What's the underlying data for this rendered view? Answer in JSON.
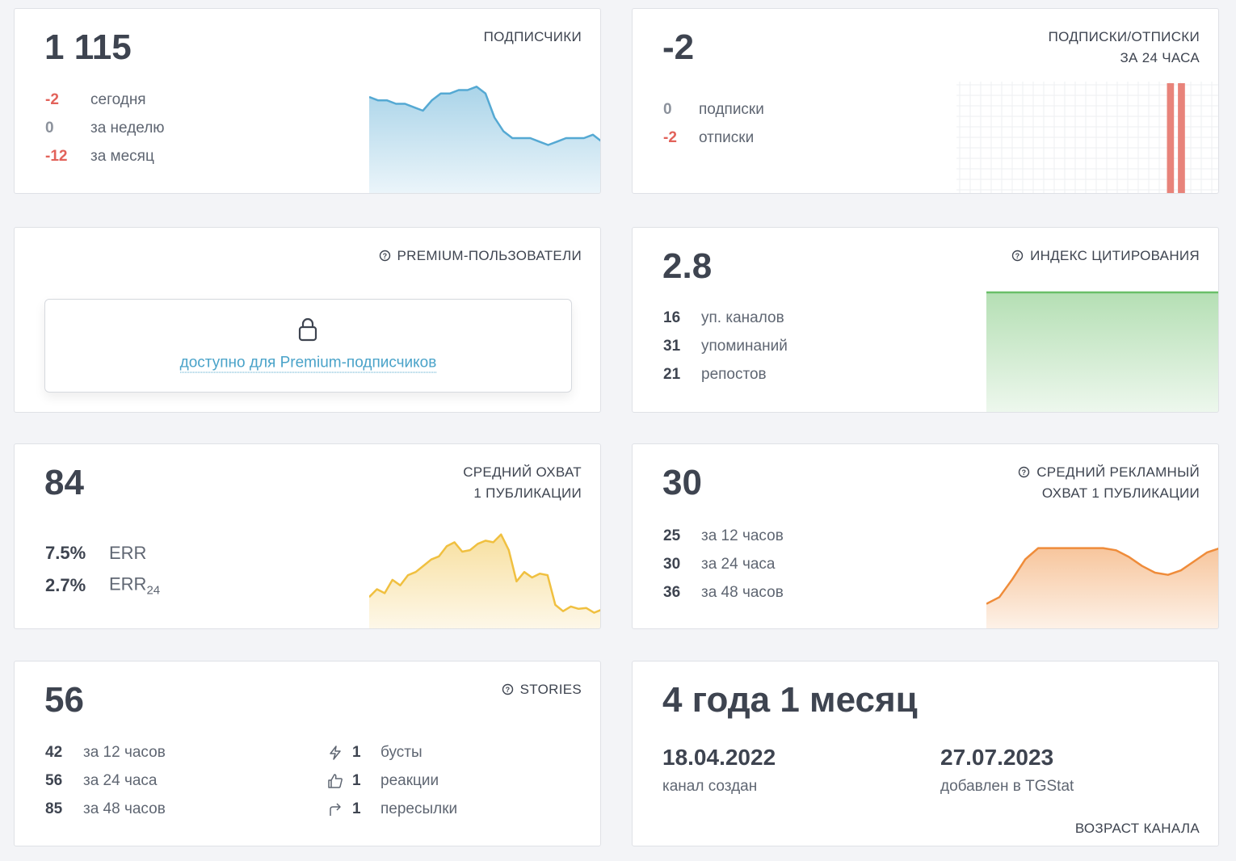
{
  "cards": [
    {
      "value": "1 115",
      "label": [
        "ПОДПИСЧИКИ"
      ],
      "stats": [
        {
          "value": -2,
          "label": "сегодня"
        },
        {
          "value": 0,
          "label": "за неделю"
        },
        {
          "value": -12,
          "label": "за месяц"
        }
      ],
      "sparkline": {
        "kind": "area",
        "color": "#55a9d3",
        "ylim": [
          1100,
          1132
        ],
        "values": [
          1128,
          1127,
          1127,
          1126,
          1126,
          1125,
          1124,
          1127,
          1129,
          1129,
          1130,
          1130,
          1131,
          1129,
          1122,
          1118,
          1116,
          1116,
          1116,
          1115,
          1114,
          1115,
          1116,
          1116,
          1116,
          1117,
          1115
        ]
      }
    },
    {
      "value": -2,
      "label": [
        "ПОДПИСКИ/ОТПИСКИ",
        "ЗА 24 ЧАСА"
      ],
      "stats": [
        {
          "value": 0,
          "label": "подписки"
        },
        {
          "value": -2,
          "label": "отписки"
        }
      ],
      "sparkline": {
        "kind": "bars",
        "color": "#e8837a",
        "ylim": [
          0,
          1
        ],
        "values": [
          0,
          0,
          0,
          0,
          0,
          0,
          0,
          0,
          0,
          0,
          0,
          0,
          0,
          0,
          0,
          0,
          0,
          0,
          0,
          1,
          1,
          0,
          0,
          0
        ]
      }
    },
    {
      "label": [
        "PREMIUM-ПОЛЬЗОВАТЕЛИ"
      ],
      "help": true,
      "locked": "доступно для Premium-подписчиков"
    },
    {
      "value": 2.8,
      "label": [
        "ИНДЕКС ЦИТИРОВАНИЯ"
      ],
      "help": true,
      "stats": [
        {
          "value": 16,
          "label": "уп. каналов"
        },
        {
          "value": 31,
          "label": "упоминаний"
        },
        {
          "value": 21,
          "label": "репостов"
        }
      ],
      "sparkline": {
        "kind": "area",
        "color": "#6abf69",
        "ylim": [
          0,
          2.8
        ],
        "values": [
          2.8,
          2.8,
          2.8,
          2.8,
          2.8
        ]
      }
    },
    {
      "value": 84,
      "label": [
        "СРЕДНИЙ ОХВАТ",
        "1 ПУБЛИКАЦИИ"
      ],
      "stats": [
        {
          "value": "7.5%",
          "label": "ERR"
        },
        {
          "value": "2.7%",
          "label": "ERR",
          "sub": "24"
        }
      ],
      "sparkline": {
        "kind": "area",
        "color": "#f0c040",
        "ylim": [
          0,
          130
        ],
        "values": [
          40,
          50,
          45,
          62,
          55,
          68,
          72,
          80,
          88,
          92,
          105,
          110,
          98,
          100,
          108,
          112,
          110,
          120,
          100,
          60,
          72,
          65,
          70,
          68,
          30,
          22,
          28,
          25,
          26,
          20,
          24
        ]
      }
    },
    {
      "value": 30,
      "label": [
        "СРЕДНИЙ РЕКЛАМНЫЙ",
        "ОХВАТ 1 ПУБЛИКАЦИИ"
      ],
      "help": true,
      "stats": [
        {
          "value": 25,
          "label": "за 12 часов"
        },
        {
          "value": 30,
          "label": "за 24 часа"
        },
        {
          "value": 36,
          "label": "за 48 часов"
        }
      ],
      "sparkline": {
        "kind": "area",
        "color": "#ef8c3a",
        "ylim": [
          0,
          42
        ],
        "values": [
          11,
          14,
          22,
          31,
          36,
          36,
          36,
          36,
          36,
          36,
          35,
          32,
          28,
          25,
          24,
          26,
          30,
          34,
          36
        ]
      }
    },
    {
      "value": 56,
      "label": [
        "STORIES"
      ],
      "help": true,
      "stats": [
        {
          "value": 42,
          "label": "за 12 часов"
        },
        {
          "value": 56,
          "label": "за 24 часа"
        },
        {
          "value": 85,
          "label": "за 48 часов"
        }
      ],
      "extra": [
        {
          "value": 1,
          "label": "бусты"
        },
        {
          "value": 1,
          "label": "реакции"
        },
        {
          "value": 1,
          "label": "пересылки"
        }
      ]
    },
    {
      "value": "4 года 1 месяц",
      "label": [
        "ВОЗРАСТ КАНАЛА"
      ],
      "dates": [
        {
          "value": "18.04.2022",
          "label": "канал создан"
        },
        {
          "value": "27.07.2023",
          "label": "добавлен в TGStat"
        }
      ]
    }
  ]
}
